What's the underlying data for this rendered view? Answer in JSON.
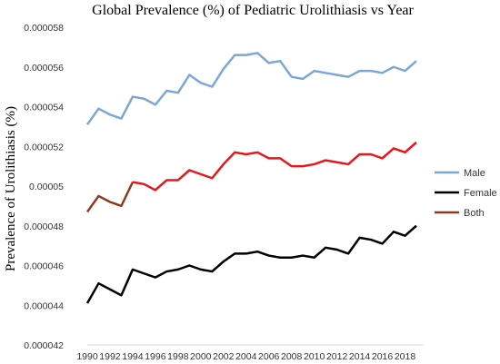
{
  "chart_data": {
    "type": "line",
    "title": "Global Prevalence (%) of Pediatric Urolithiasis vs Year",
    "xlabel": "",
    "ylabel": "Prevalence of Urolithiasis (%)",
    "x": [
      1990,
      1991,
      1992,
      1993,
      1994,
      1995,
      1996,
      1997,
      1998,
      1999,
      2000,
      2001,
      2002,
      2003,
      2004,
      2005,
      2006,
      2007,
      2008,
      2009,
      2010,
      2011,
      2012,
      2013,
      2014,
      2015,
      2016,
      2017,
      2018,
      2019
    ],
    "xticks": [
      1990,
      1992,
      1994,
      1996,
      1998,
      2000,
      2002,
      2004,
      2006,
      2008,
      2010,
      2012,
      2014,
      2016,
      2018
    ],
    "ylim": [
      4.2e-05,
      5.8e-05
    ],
    "yticks": [
      "0.000042",
      "0.000044",
      "0.000046",
      "0.000048",
      "0.00005",
      "0.000052",
      "0.000054",
      "0.000056",
      "0.000058"
    ],
    "grid": false,
    "legend_position": "right",
    "series": [
      {
        "name": "Male",
        "color": "#7ba7d7",
        "values": [
          5.31e-05,
          5.39e-05,
          5.36e-05,
          5.34e-05,
          5.45e-05,
          5.44e-05,
          5.41e-05,
          5.48e-05,
          5.47e-05,
          5.56e-05,
          5.52e-05,
          5.5e-05,
          5.59e-05,
          5.66e-05,
          5.66e-05,
          5.67e-05,
          5.62e-05,
          5.63e-05,
          5.55e-05,
          5.54e-05,
          5.58e-05,
          5.57e-05,
          5.56e-05,
          5.55e-05,
          5.58e-05,
          5.58e-05,
          5.57e-05,
          5.6e-05,
          5.58e-05,
          5.63e-05
        ]
      },
      {
        "name": "Female",
        "color": "#000000",
        "values": [
          4.41e-05,
          4.51e-05,
          4.48e-05,
          4.45e-05,
          4.58e-05,
          4.56e-05,
          4.54e-05,
          4.57e-05,
          4.58e-05,
          4.6e-05,
          4.58e-05,
          4.57e-05,
          4.62e-05,
          4.66e-05,
          4.66e-05,
          4.67e-05,
          4.65e-05,
          4.64e-05,
          4.64e-05,
          4.65e-05,
          4.64e-05,
          4.69e-05,
          4.68e-05,
          4.66e-05,
          4.74e-05,
          4.73e-05,
          4.71e-05,
          4.77e-05,
          4.75e-05,
          4.8e-05
        ]
      },
      {
        "name": "Both",
        "color": "#8b3a1e",
        "accent_color": "#e8161c",
        "values": [
          4.87e-05,
          4.95e-05,
          4.92e-05,
          4.9e-05,
          5.02e-05,
          5.01e-05,
          4.98e-05,
          5.03e-05,
          5.03e-05,
          5.08e-05,
          5.06e-05,
          5.04e-05,
          5.11e-05,
          5.17e-05,
          5.16e-05,
          5.17e-05,
          5.14e-05,
          5.14e-05,
          5.1e-05,
          5.1e-05,
          5.11e-05,
          5.13e-05,
          5.12e-05,
          5.11e-05,
          5.16e-05,
          5.16e-05,
          5.14e-05,
          5.19e-05,
          5.17e-05,
          5.22e-05
        ]
      }
    ]
  }
}
